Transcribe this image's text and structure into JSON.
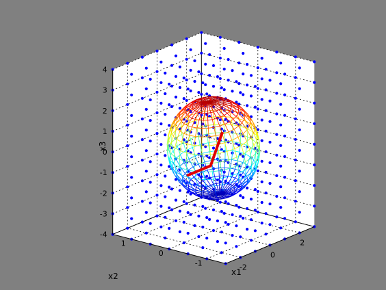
{
  "chart_data": {
    "type": "scatter",
    "projection": "3d",
    "xlabel": "x1",
    "ylabel": "x2",
    "zlabel": "x3",
    "x_ticks": [
      "-2",
      "0",
      "2"
    ],
    "y_ticks": [
      "-1",
      "0",
      "1"
    ],
    "z_ticks": [
      "-4",
      "-3",
      "-2",
      "-1",
      "0",
      "1",
      "2",
      "3",
      "4"
    ],
    "xlim": [
      -3,
      3
    ],
    "ylim": [
      -1.5,
      1.5
    ],
    "zlim": [
      -4,
      4
    ],
    "grid": true,
    "series": [
      {
        "kind": "grid-points",
        "color": "#0000ff",
        "x": [
          -3,
          -2,
          -1,
          0,
          1,
          2,
          3
        ],
        "y": [
          -1.5,
          -1,
          -0.5,
          0,
          0.5,
          1,
          1.5
        ],
        "z": [
          -4,
          -3,
          -2,
          -1,
          0,
          1,
          2,
          3,
          4
        ]
      },
      {
        "kind": "ellipsoid-wireframe",
        "center": [
          0,
          0,
          0
        ],
        "semi_axes": [
          2.0,
          1.0,
          2.6
        ],
        "colormap": "jet"
      },
      {
        "kind": "segment",
        "color": "#e00000",
        "points": [
          [
            -1.8,
            0,
            -0.8
          ],
          [
            -0.2,
            0,
            -0.8
          ],
          [
            0.6,
            0,
            0.6
          ]
        ]
      }
    ]
  }
}
